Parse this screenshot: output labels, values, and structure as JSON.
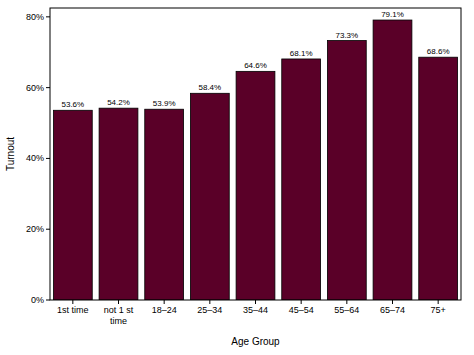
{
  "chart_data": {
    "type": "bar",
    "x_label": "Age Group",
    "y_label": "Turnout",
    "categories": [
      "1st time",
      "not 1 st time",
      "18–24",
      "25–34",
      "35–44",
      "45–54",
      "55–64",
      "65–74",
      "75+"
    ],
    "values": [
      53.6,
      54.2,
      53.9,
      58.4,
      64.6,
      68.1,
      73.3,
      79.1,
      68.6
    ],
    "value_labels": [
      "53.6%",
      "54.2%",
      "53.9%",
      "58.4%",
      "64.6%",
      "68.1%",
      "73.3%",
      "79.1%",
      "68.6%"
    ],
    "data_labels": true,
    "color": "#5a0028",
    "ylim": [
      0,
      82.5
    ],
    "yticks": [
      {
        "value": 0,
        "label": "0%"
      },
      {
        "value": 20,
        "label": "20%"
      },
      {
        "value": 40,
        "label": "40%"
      },
      {
        "value": 60,
        "label": "60%"
      },
      {
        "value": 80,
        "label": "80%"
      }
    ],
    "grid": false
  }
}
